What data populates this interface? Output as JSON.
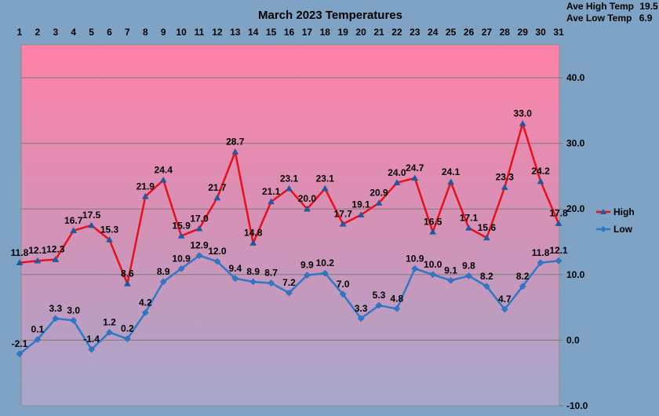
{
  "chart_data": {
    "type": "line",
    "title": "March 2023 Temperatures",
    "x": [
      1,
      2,
      3,
      4,
      5,
      6,
      7,
      8,
      9,
      10,
      11,
      12,
      13,
      14,
      15,
      16,
      17,
      18,
      19,
      20,
      21,
      22,
      23,
      24,
      25,
      26,
      27,
      28,
      29,
      30,
      31
    ],
    "x_tick_labels": [
      "1",
      "2",
      "3",
      "4",
      "5",
      "6",
      "7",
      "8",
      "9",
      "10",
      "11",
      "12",
      "13",
      "14",
      "15",
      "16",
      "17",
      "18",
      "19",
      "20",
      "21",
      "22",
      "23",
      "24",
      "25",
      "26",
      "27",
      "28",
      "29",
      "30",
      "31"
    ],
    "ylim": [
      -10,
      45
    ],
    "y_ticks": [
      -10,
      0,
      10,
      20,
      30,
      40
    ],
    "y_tick_labels": [
      "-10.0",
      "0.0",
      "10.0",
      "20.0",
      "30.0",
      "40.0"
    ],
    "grid": true,
    "legend_position": "right",
    "series": [
      {
        "name": "High",
        "color": "#e8101a",
        "values": [
          11.8,
          12.1,
          12.3,
          16.7,
          17.5,
          15.3,
          8.6,
          21.9,
          24.4,
          15.9,
          17.0,
          21.7,
          28.7,
          14.8,
          21.1,
          23.1,
          20.0,
          23.1,
          17.7,
          19.1,
          20.9,
          24.0,
          24.7,
          16.5,
          24.1,
          17.1,
          15.6,
          23.3,
          33.0,
          24.2,
          17.8
        ],
        "labels": [
          "11.8",
          "12.1",
          "12.3",
          "16.7",
          "17.5",
          "15.3",
          "8.6",
          "21.9",
          "24.4",
          "15.9",
          "17.0",
          "21.7",
          "28.7",
          "14.8",
          "21.1",
          "23.1",
          "20.0",
          "23.1",
          "17.7",
          "19.1",
          "20.9",
          "24.0",
          "24.7",
          "16.5",
          "24.1",
          "17.1",
          "15.6",
          "23.3",
          "33.0",
          "24.2",
          "17.8"
        ]
      },
      {
        "name": "Low",
        "color": "#2e78c8",
        "values": [
          -2.1,
          0.1,
          3.3,
          3.0,
          -1.4,
          1.2,
          0.2,
          4.2,
          8.9,
          10.9,
          12.9,
          12.0,
          9.4,
          8.9,
          8.7,
          7.2,
          9.9,
          10.2,
          7.0,
          3.3,
          5.3,
          4.8,
          10.9,
          10.0,
          9.1,
          9.8,
          8.2,
          4.7,
          8.2,
          11.8,
          12.1
        ],
        "labels": [
          "-2.1",
          "0.1",
          "3.3",
          "3.0",
          "-1.4",
          "1.2",
          "0.2",
          "4.2",
          "8.9",
          "10.9",
          "12.9",
          "12.0",
          "9.4",
          "8.9",
          "8.7",
          "7.2",
          "9.9",
          "10.2",
          "7.0",
          "3.3",
          "5.3",
          "4.8",
          "10.9",
          "10.0",
          "9.1",
          "9.8",
          "8.2",
          "4.7",
          "8.2",
          "11.8",
          "12.1"
        ]
      }
    ],
    "stats": {
      "ave_high_label": "Ave High Temp",
      "ave_high_value": "19.5",
      "ave_low_label": "Ave Low Temp",
      "ave_low_value": "6.9"
    }
  }
}
